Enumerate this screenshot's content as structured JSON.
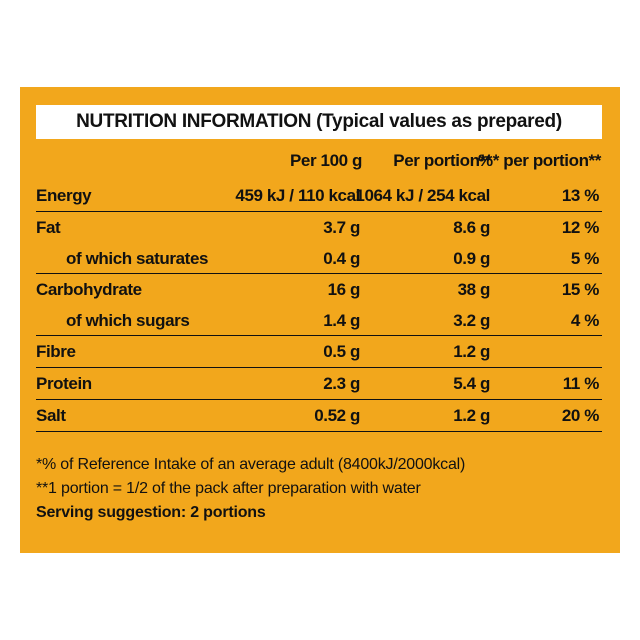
{
  "title": "NUTRITION INFORMATION (Typical values as prepared)",
  "columns": [
    "Per 100 g",
    "Per portion**",
    "%* per portion**"
  ],
  "groups": [
    {
      "rows": [
        {
          "label": "Energy",
          "sub": false,
          "v1": "459 kJ / 110 kcal",
          "v2": "1064 kJ / 254 kcal",
          "v3": "13 %"
        }
      ]
    },
    {
      "rows": [
        {
          "label": "Fat",
          "sub": false,
          "v1": "3.7 g",
          "v2": "8.6 g",
          "v3": "12 %"
        },
        {
          "label": "of which saturates",
          "sub": true,
          "v1": "0.4 g",
          "v2": "0.9 g",
          "v3": "5 %"
        }
      ]
    },
    {
      "rows": [
        {
          "label": "Carbohydrate",
          "sub": false,
          "v1": "16 g",
          "v2": "38 g",
          "v3": "15 %"
        },
        {
          "label": "of which sugars",
          "sub": true,
          "v1": "1.4 g",
          "v2": "3.2 g",
          "v3": "4 %"
        }
      ]
    },
    {
      "rows": [
        {
          "label": "Fibre",
          "sub": false,
          "v1": "0.5 g",
          "v2": "1.2 g",
          "v3": ""
        }
      ]
    },
    {
      "rows": [
        {
          "label": "Protein",
          "sub": false,
          "v1": "2.3 g",
          "v2": "5.4 g",
          "v3": "11 %"
        }
      ]
    },
    {
      "rows": [
        {
          "label": "Salt",
          "sub": false,
          "v1": "0.52 g",
          "v2": "1.2 g",
          "v3": "20 %"
        }
      ]
    }
  ],
  "notes": {
    "reference_intake": "*% of Reference Intake of an average adult (8400kJ/2000kcal)",
    "portion": "**1 portion = 1/2 of the pack after preparation with water",
    "serving": "Serving suggestion: 2 portions"
  },
  "colors": {
    "panel": "#f2a71c",
    "text": "#111111",
    "title_bg": "#ffffff"
  }
}
